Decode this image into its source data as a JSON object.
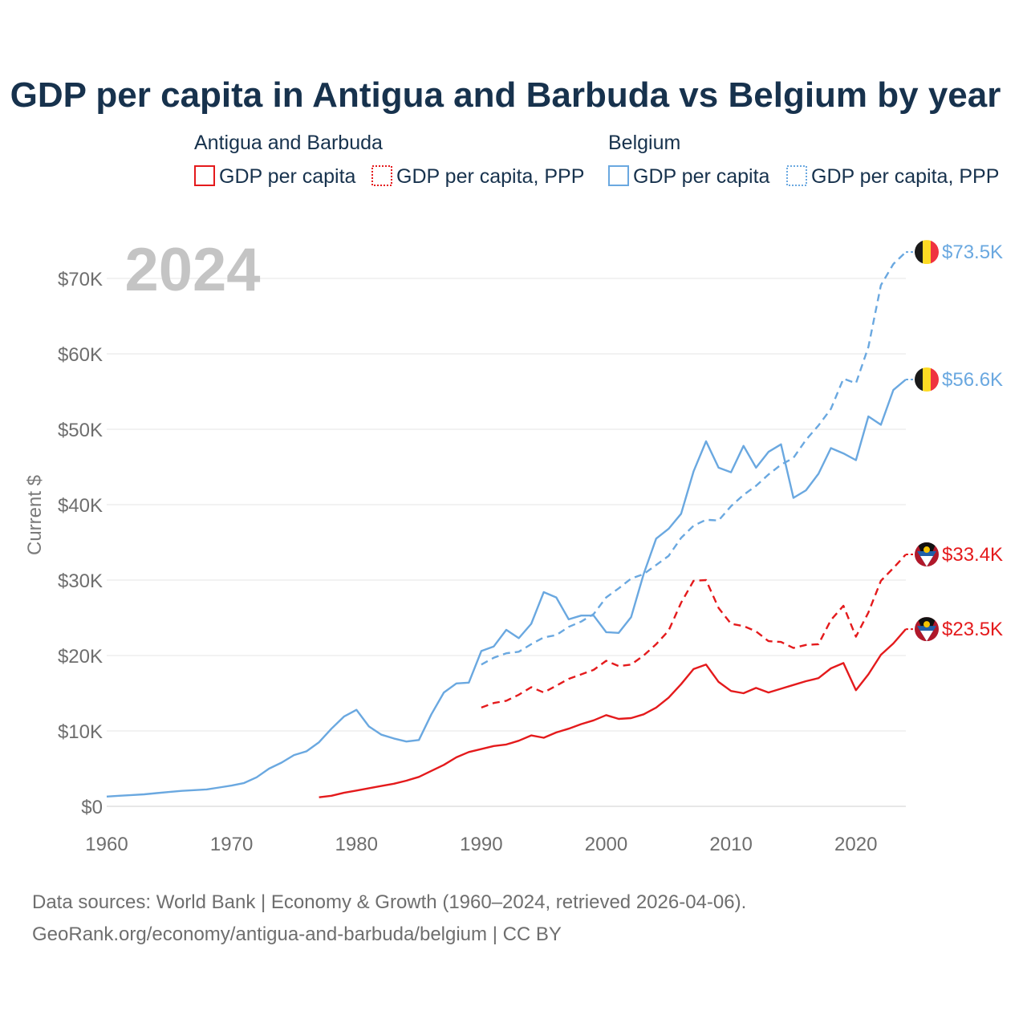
{
  "chart_data": {
    "type": "line",
    "title": "GDP per capita in Antigua and Barbuda vs Belgium by year",
    "year_label": "2024",
    "ylabel": "Current $",
    "xlim": [
      1960,
      2024
    ],
    "ylim": [
      0,
      75000
    ],
    "x_ticks": [
      1960,
      1970,
      1980,
      1990,
      2000,
      2010,
      2020
    ],
    "y_ticks": [
      0,
      10000,
      20000,
      30000,
      40000,
      50000,
      60000,
      70000
    ],
    "y_tick_labels": [
      "$0",
      "$10K",
      "$20K",
      "$30K",
      "$40K",
      "$50K",
      "$60K",
      "$70K"
    ],
    "legend": {
      "groups": [
        {
          "name": "Antigua and Barbuda",
          "entries": [
            "GDP per capita",
            "GDP per capita, PPP"
          ],
          "color": "#e41a1c"
        },
        {
          "name": "Belgium",
          "entries": [
            "GDP per capita",
            "GDP per capita, PPP"
          ],
          "color": "#6aa8e0"
        }
      ]
    },
    "series": [
      {
        "name": "Belgium GDP per capita",
        "country": "Belgium",
        "color": "#6aa8e0",
        "dash": "solid",
        "end_label": "$56.6K",
        "points": [
          [
            1960,
            1300
          ],
          [
            1961,
            1400
          ],
          [
            1962,
            1500
          ],
          [
            1963,
            1600
          ],
          [
            1964,
            1750
          ],
          [
            1965,
            1900
          ],
          [
            1966,
            2050
          ],
          [
            1967,
            2150
          ],
          [
            1968,
            2250
          ],
          [
            1969,
            2500
          ],
          [
            1970,
            2750
          ],
          [
            1971,
            3100
          ],
          [
            1972,
            3850
          ],
          [
            1973,
            5000
          ],
          [
            1974,
            5800
          ],
          [
            1975,
            6800
          ],
          [
            1976,
            7300
          ],
          [
            1977,
            8500
          ],
          [
            1978,
            10300
          ],
          [
            1979,
            11900
          ],
          [
            1980,
            12800
          ],
          [
            1981,
            10600
          ],
          [
            1982,
            9500
          ],
          [
            1983,
            9000
          ],
          [
            1984,
            8600
          ],
          [
            1985,
            8800
          ],
          [
            1986,
            12200
          ],
          [
            1987,
            15100
          ],
          [
            1988,
            16300
          ],
          [
            1989,
            16400
          ],
          [
            1990,
            20600
          ],
          [
            1991,
            21200
          ],
          [
            1992,
            23400
          ],
          [
            1993,
            22300
          ],
          [
            1994,
            24200
          ],
          [
            1995,
            28400
          ],
          [
            1996,
            27700
          ],
          [
            1997,
            24800
          ],
          [
            1998,
            25300
          ],
          [
            1999,
            25300
          ],
          [
            2000,
            23100
          ],
          [
            2001,
            23000
          ],
          [
            2002,
            25100
          ],
          [
            2003,
            30800
          ],
          [
            2004,
            35500
          ],
          [
            2005,
            36800
          ],
          [
            2006,
            38800
          ],
          [
            2007,
            44400
          ],
          [
            2008,
            48400
          ],
          [
            2009,
            44900
          ],
          [
            2010,
            44300
          ],
          [
            2011,
            47800
          ],
          [
            2012,
            44900
          ],
          [
            2013,
            47000
          ],
          [
            2014,
            48000
          ],
          [
            2015,
            40900
          ],
          [
            2016,
            41900
          ],
          [
            2017,
            44100
          ],
          [
            2018,
            47500
          ],
          [
            2019,
            46800
          ],
          [
            2020,
            45900
          ],
          [
            2021,
            51700
          ],
          [
            2022,
            50600
          ],
          [
            2023,
            55200
          ],
          [
            2024,
            56600
          ]
        ]
      },
      {
        "name": "Belgium GDP per capita, PPP",
        "country": "Belgium",
        "color": "#6aa8e0",
        "dash": "dashed",
        "end_label": "$73.5K",
        "points": [
          [
            1990,
            18800
          ],
          [
            1991,
            19700
          ],
          [
            1992,
            20300
          ],
          [
            1993,
            20500
          ],
          [
            1994,
            21500
          ],
          [
            1995,
            22400
          ],
          [
            1996,
            22700
          ],
          [
            1997,
            23800
          ],
          [
            1998,
            24500
          ],
          [
            1999,
            25500
          ],
          [
            2000,
            27700
          ],
          [
            2001,
            28900
          ],
          [
            2002,
            30200
          ],
          [
            2003,
            30800
          ],
          [
            2004,
            32000
          ],
          [
            2005,
            33200
          ],
          [
            2006,
            35600
          ],
          [
            2007,
            37200
          ],
          [
            2008,
            38000
          ],
          [
            2009,
            37900
          ],
          [
            2010,
            39800
          ],
          [
            2011,
            41300
          ],
          [
            2012,
            42500
          ],
          [
            2013,
            44000
          ],
          [
            2014,
            45300
          ],
          [
            2015,
            46200
          ],
          [
            2016,
            48600
          ],
          [
            2017,
            50500
          ],
          [
            2018,
            52700
          ],
          [
            2019,
            56700
          ],
          [
            2020,
            56100
          ],
          [
            2021,
            60900
          ],
          [
            2022,
            69100
          ],
          [
            2023,
            71900
          ],
          [
            2024,
            73500
          ]
        ]
      },
      {
        "name": "Antigua and Barbuda GDP per capita",
        "country": "Antigua and Barbuda",
        "color": "#e41a1c",
        "dash": "solid",
        "end_label": "$23.5K",
        "points": [
          [
            1977,
            1200
          ],
          [
            1978,
            1400
          ],
          [
            1979,
            1800
          ],
          [
            1980,
            2100
          ],
          [
            1981,
            2400
          ],
          [
            1982,
            2700
          ],
          [
            1983,
            3000
          ],
          [
            1984,
            3400
          ],
          [
            1985,
            3900
          ],
          [
            1986,
            4700
          ],
          [
            1987,
            5500
          ],
          [
            1988,
            6500
          ],
          [
            1989,
            7200
          ],
          [
            1990,
            7600
          ],
          [
            1991,
            8000
          ],
          [
            1992,
            8200
          ],
          [
            1993,
            8700
          ],
          [
            1994,
            9400
          ],
          [
            1995,
            9100
          ],
          [
            1996,
            9800
          ],
          [
            1997,
            10300
          ],
          [
            1998,
            10900
          ],
          [
            1999,
            11400
          ],
          [
            2000,
            12100
          ],
          [
            2001,
            11600
          ],
          [
            2002,
            11700
          ],
          [
            2003,
            12200
          ],
          [
            2004,
            13100
          ],
          [
            2005,
            14400
          ],
          [
            2006,
            16200
          ],
          [
            2007,
            18200
          ],
          [
            2008,
            18800
          ],
          [
            2009,
            16500
          ],
          [
            2010,
            15300
          ],
          [
            2011,
            15000
          ],
          [
            2012,
            15700
          ],
          [
            2013,
            15100
          ],
          [
            2014,
            15600
          ],
          [
            2015,
            16100
          ],
          [
            2016,
            16600
          ],
          [
            2017,
            17000
          ],
          [
            2018,
            18300
          ],
          [
            2019,
            19000
          ],
          [
            2020,
            15400
          ],
          [
            2021,
            17500
          ],
          [
            2022,
            20100
          ],
          [
            2023,
            21600
          ],
          [
            2024,
            23500
          ]
        ]
      },
      {
        "name": "Antigua and Barbuda GDP per capita, PPP",
        "country": "Antigua and Barbuda",
        "color": "#e41a1c",
        "dash": "dashed",
        "end_label": "$33.4K",
        "points": [
          [
            1990,
            13100
          ],
          [
            1991,
            13700
          ],
          [
            1992,
            14000
          ],
          [
            1993,
            14800
          ],
          [
            1994,
            15800
          ],
          [
            1995,
            15100
          ],
          [
            1996,
            16000
          ],
          [
            1997,
            16900
          ],
          [
            1998,
            17500
          ],
          [
            1999,
            18100
          ],
          [
            2000,
            19300
          ],
          [
            2001,
            18600
          ],
          [
            2002,
            18800
          ],
          [
            2003,
            20000
          ],
          [
            2004,
            21500
          ],
          [
            2005,
            23300
          ],
          [
            2006,
            27000
          ],
          [
            2007,
            29900
          ],
          [
            2008,
            30000
          ],
          [
            2009,
            26300
          ],
          [
            2010,
            24200
          ],
          [
            2011,
            23900
          ],
          [
            2012,
            23200
          ],
          [
            2013,
            21900
          ],
          [
            2014,
            21800
          ],
          [
            2015,
            21000
          ],
          [
            2016,
            21400
          ],
          [
            2017,
            21500
          ],
          [
            2018,
            24700
          ],
          [
            2019,
            26600
          ],
          [
            2020,
            22500
          ],
          [
            2021,
            25700
          ],
          [
            2022,
            29900
          ],
          [
            2023,
            31600
          ],
          [
            2024,
            33400
          ]
        ]
      }
    ],
    "source_line_1": "Data sources: World Bank | Economy & Growth (1960–2024, retrieved 2026-04-06).",
    "source_line_2": "GeoRank.org/economy/antigua-and-barbuda/belgium | CC BY"
  }
}
